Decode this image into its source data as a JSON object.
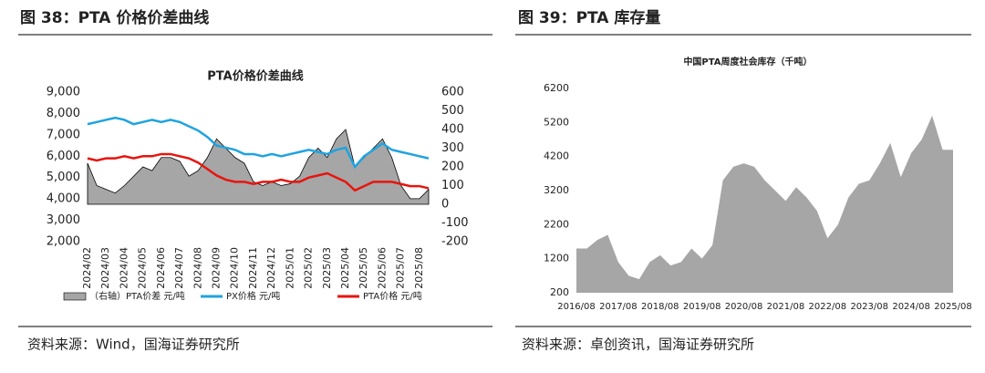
{
  "figures": [
    {
      "caption": "图 38：PTA 价格价差曲线",
      "source": "资料来源：Wind，国海证券研究所"
    },
    {
      "caption": "图 39：PTA 库存量",
      "source": "资料来源：卓创资讯，国海证券研究所"
    }
  ],
  "chart_data": [
    {
      "type": "line",
      "title": "PTA价格价差曲线",
      "categories": [
        "2024/02",
        null,
        "2024/03",
        null,
        "2024/04",
        null,
        "2024/05",
        null,
        "2024/06",
        null,
        "2024/07",
        null,
        "2024/08",
        null,
        "2024/09",
        null,
        "2024/10",
        null,
        "2024/11",
        null,
        "2024/12",
        null,
        "2025/01",
        null,
        "2025/02",
        null,
        "2025/03",
        null,
        "2025/04",
        null,
        "2025/05",
        null,
        "2025/06",
        null,
        "2025/07",
        null,
        "2025/08",
        null
      ],
      "series": [
        {
          "name": "（右轴）PTA价差 元/吨",
          "type": "area",
          "axis": "y2",
          "color": "#a6a6a6",
          "values": [
            220,
            100,
            80,
            60,
            100,
            150,
            200,
            180,
            250,
            250,
            230,
            150,
            180,
            250,
            350,
            300,
            250,
            220,
            120,
            100,
            120,
            100,
            110,
            150,
            250,
            300,
            250,
            350,
            400,
            200,
            250,
            300,
            350,
            250,
            100,
            30,
            30,
            80
          ]
        },
        {
          "name": "PX价格 元/吨",
          "color": "#1fa3e0",
          "values": [
            7500,
            7600,
            7700,
            7800,
            7700,
            7500,
            7600,
            7700,
            7600,
            7700,
            7600,
            7400,
            7200,
            6900,
            6500,
            6400,
            6300,
            6100,
            6100,
            6000,
            6100,
            6000,
            6100,
            6200,
            6300,
            6200,
            6100,
            6300,
            6400,
            5500,
            6000,
            6300,
            6600,
            6300,
            6200,
            6100,
            6000,
            5900
          ]
        },
        {
          "name": "PTA价格 元/吨",
          "color": "#e8140e",
          "values": [
            5900,
            5800,
            5900,
            5900,
            6000,
            5900,
            6000,
            6000,
            6100,
            6100,
            6000,
            5900,
            5700,
            5400,
            5100,
            4900,
            4800,
            4800,
            4700,
            4800,
            4800,
            4900,
            4800,
            4800,
            5000,
            5100,
            5200,
            5000,
            4800,
            4400,
            4600,
            4800,
            4800,
            4800,
            4700,
            4600,
            4600,
            4500
          ]
        }
      ],
      "ylim": [
        2000,
        9000
      ],
      "yticks": [
        {
          "value": 2000,
          "label": "2,000"
        },
        {
          "value": 3000,
          "label": "3,000"
        },
        {
          "value": 4000,
          "label": "4,000"
        },
        {
          "value": 5000,
          "label": "5,000"
        },
        {
          "value": 6000,
          "label": "6,000"
        },
        {
          "value": 7000,
          "label": "7,000"
        },
        {
          "value": 8000,
          "label": "8,000"
        },
        {
          "value": 9000,
          "label": "9,000"
        }
      ],
      "y2lim": [
        -200,
        600
      ],
      "y2ticks": [
        -200,
        -100,
        0,
        100,
        200,
        300,
        400,
        500,
        600
      ],
      "legend": "bottom"
    },
    {
      "type": "area",
      "title": "中国PTA周度社会库存（千吨）",
      "color": "#a6a6a6",
      "categories": [
        "2016/08",
        null,
        null,
        null,
        "2017/08",
        null,
        null,
        null,
        "2018/08",
        null,
        null,
        null,
        "2019/08",
        null,
        null,
        null,
        "2020/08",
        null,
        null,
        null,
        "2021/08",
        null,
        null,
        null,
        "2022/08",
        null,
        null,
        null,
        "2023/08",
        null,
        null,
        null,
        "2024/08",
        null,
        null,
        null,
        "2025/08"
      ],
      "values": [
        1500,
        1500,
        1750,
        1900,
        1100,
        700,
        600,
        1100,
        1300,
        1000,
        1100,
        1500,
        1200,
        1600,
        3500,
        3900,
        4000,
        3900,
        3500,
        3200,
        2900,
        3300,
        3000,
        2600,
        1800,
        2200,
        3000,
        3400,
        3500,
        4000,
        4600,
        3600,
        4300,
        4700,
        5400,
        4400,
        4400
      ],
      "ylim": [
        200,
        6200
      ],
      "yticks": [
        200,
        1200,
        2200,
        3200,
        4200,
        5200,
        6200
      ]
    }
  ]
}
